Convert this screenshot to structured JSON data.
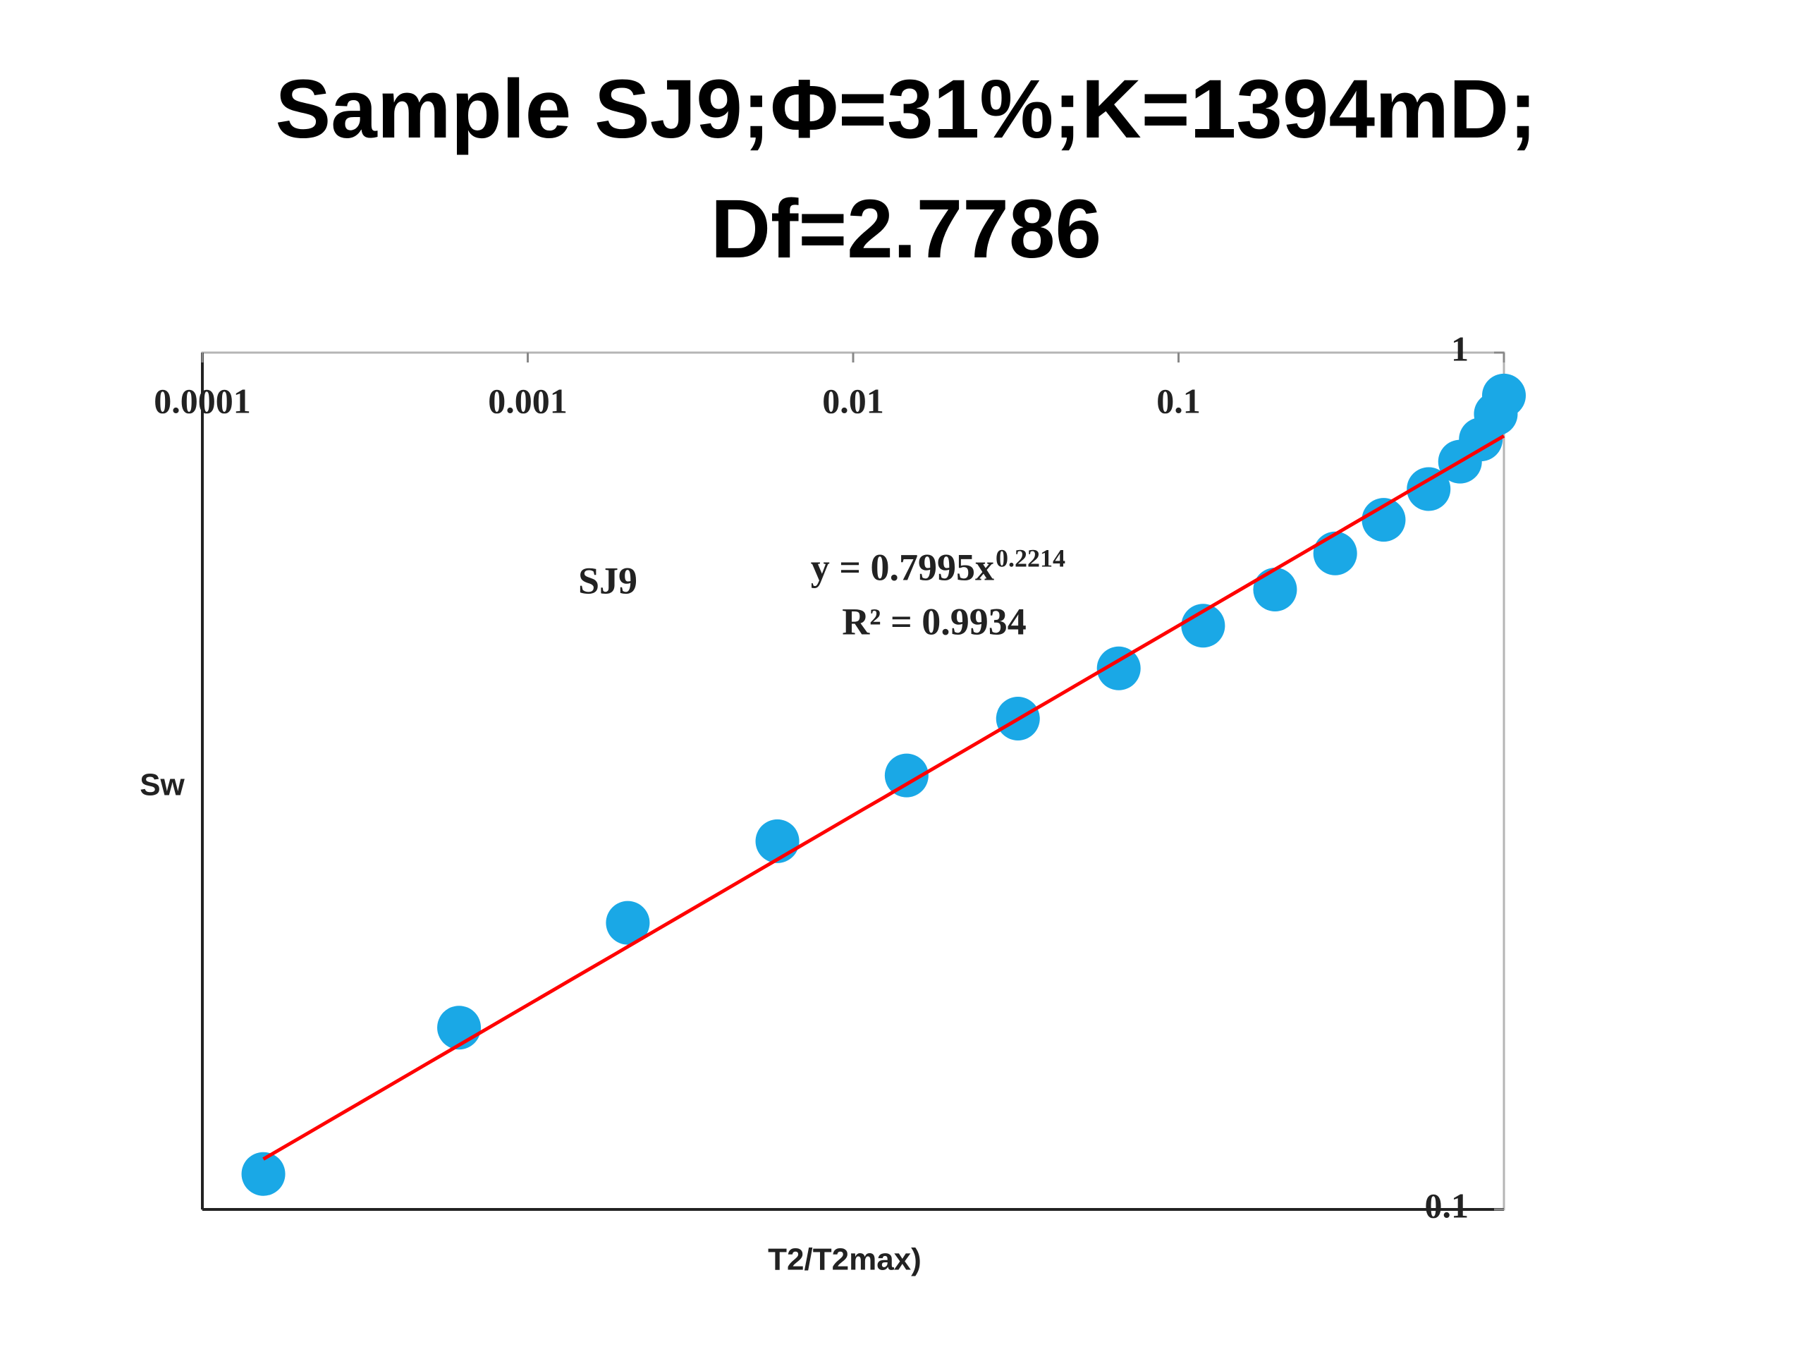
{
  "chart_data": {
    "type": "scatter",
    "title": [
      "Sample SJ9;Φ=31%;K=1394mD;",
      "Df=2.7786"
    ],
    "x_label": "T2/T2max)",
    "y_label": "Sw",
    "series_label": "SJ9",
    "log_x": true,
    "log_y": true,
    "xlim": [
      0.0001,
      1
    ],
    "ylim": [
      0.1,
      1
    ],
    "xticks": [
      0.0001,
      0.001,
      0.01,
      0.1,
      1
    ],
    "yticks": [
      0.1,
      1
    ],
    "color": "#1aa8e6",
    "x": [
      0.000154,
      0.000615,
      0.00203,
      0.00585,
      0.0146,
      0.0321,
      0.0655,
      0.119,
      0.198,
      0.303,
      0.427,
      0.587,
      0.733,
      0.849,
      0.944,
      1.0
    ],
    "values": [
      0.11,
      0.163,
      0.216,
      0.269,
      0.321,
      0.374,
      0.428,
      0.48,
      0.529,
      0.583,
      0.638,
      0.693,
      0.746,
      0.792,
      0.848,
      0.891
    ],
    "trendline": {
      "coefficient": 0.7995,
      "exponent": 0.2214,
      "color": "#ff0000",
      "equation_label": "y = 0.7995x",
      "r_squared_label": "R² = 0.9934"
    }
  }
}
